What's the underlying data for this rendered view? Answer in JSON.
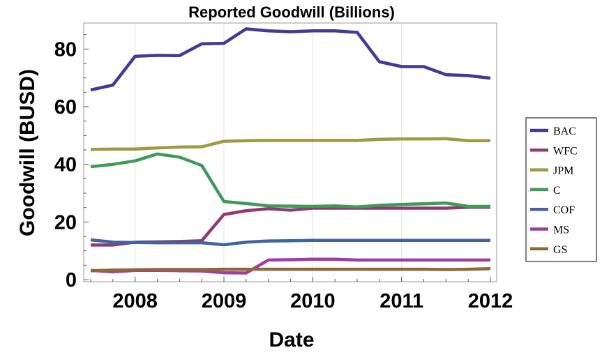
{
  "chart_data": {
    "type": "line",
    "title": "Reported Goodwill (Billions)",
    "xlabel": "Date",
    "ylabel": "Goodwill (BUSD)",
    "xlim": [
      2007.5,
      2012.0
    ],
    "ylim": [
      0,
      90
    ],
    "x_ticks": [
      2008,
      2009,
      2010,
      2011,
      2012
    ],
    "y_ticks": [
      0,
      20,
      40,
      60,
      80
    ],
    "grid": "vertical",
    "legend_position": "right",
    "x": [
      2007.5,
      2007.75,
      2008.0,
      2008.25,
      2008.5,
      2008.75,
      2009.0,
      2009.25,
      2009.5,
      2009.75,
      2010.0,
      2010.25,
      2010.5,
      2010.75,
      2011.0,
      2011.25,
      2011.5,
      2011.75,
      2012.0
    ],
    "series": [
      {
        "name": "BAC",
        "color": "#3f3b96",
        "values": [
          65.8,
          67.5,
          77.5,
          77.8,
          77.7,
          81.8,
          82.0,
          87.0,
          86.3,
          86.0,
          86.3,
          86.3,
          85.8,
          75.6,
          73.9,
          73.9,
          71.1,
          70.8,
          69.9
        ]
      },
      {
        "name": "WFC",
        "color": "#8f3a73",
        "values": [
          12.0,
          12.0,
          13.0,
          13.1,
          13.2,
          13.5,
          22.6,
          23.9,
          24.6,
          24.1,
          24.8,
          24.8,
          24.8,
          24.8,
          24.8,
          24.8,
          24.8,
          25.1,
          25.1
        ]
      },
      {
        "name": "JPM",
        "color": "#a09a45",
        "values": [
          45.2,
          45.3,
          45.3,
          45.7,
          46.0,
          46.1,
          48.0,
          48.2,
          48.3,
          48.3,
          48.3,
          48.3,
          48.3,
          48.7,
          48.8,
          48.8,
          48.9,
          48.2,
          48.2
        ]
      },
      {
        "name": "C",
        "color": "#3f9a57",
        "values": [
          39.2,
          40.0,
          41.2,
          43.6,
          42.5,
          39.6,
          27.1,
          26.4,
          25.6,
          25.5,
          25.4,
          25.6,
          25.2,
          25.8,
          26.1,
          26.3,
          26.6,
          25.4,
          25.4
        ]
      },
      {
        "name": "COF",
        "color": "#3f64a0",
        "values": [
          13.8,
          13.0,
          12.9,
          12.8,
          12.8,
          12.8,
          12.1,
          13.0,
          13.4,
          13.5,
          13.6,
          13.6,
          13.6,
          13.6,
          13.6,
          13.6,
          13.6,
          13.6,
          13.6
        ]
      },
      {
        "name": "MS",
        "color": "#a03e9c",
        "values": [
          3.2,
          2.7,
          3.2,
          3.2,
          3.1,
          3.0,
          2.4,
          2.3,
          6.8,
          6.9,
          7.1,
          7.1,
          6.8,
          6.8,
          6.8,
          6.8,
          6.8,
          6.8,
          6.8
        ]
      },
      {
        "name": "GS",
        "color": "#8f6838",
        "values": [
          3.1,
          3.3,
          3.4,
          3.5,
          3.5,
          3.5,
          3.6,
          3.6,
          3.6,
          3.6,
          3.6,
          3.6,
          3.6,
          3.6,
          3.6,
          3.6,
          3.5,
          3.6,
          3.8
        ]
      }
    ]
  }
}
